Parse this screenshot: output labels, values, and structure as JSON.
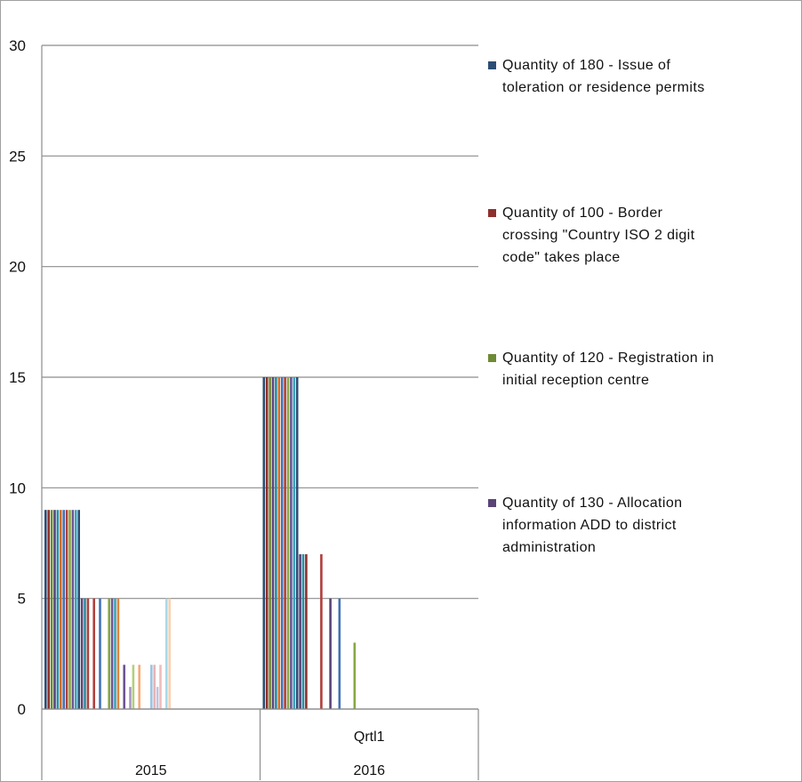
{
  "chart_data": {
    "type": "bar",
    "title": "",
    "xlabel": "",
    "ylabel": "",
    "ylim": [
      0,
      30
    ],
    "yticks": [
      0,
      5,
      10,
      15,
      20,
      25,
      30
    ],
    "grid": true,
    "legend_position": "right",
    "x_axis_levels": {
      "quarter_labels": [
        "",
        "Qrtl1"
      ],
      "year_labels": [
        "2015",
        "2016"
      ]
    },
    "groups": [
      {
        "year": "2015",
        "quarter": "",
        "bars": [
          {
            "value": 9,
            "color": "#2c4d75"
          },
          {
            "value": 9,
            "color": "#8e2f2c"
          },
          {
            "value": 9,
            "color": "#6f8a34"
          },
          {
            "value": 9,
            "color": "#5a4478"
          },
          {
            "value": 9,
            "color": "#2a8ba3"
          },
          {
            "value": 9,
            "color": "#d46e25"
          },
          {
            "value": 9,
            "color": "#4372b8"
          },
          {
            "value": 9,
            "color": "#b03f3c"
          },
          {
            "value": 9,
            "color": "#86a844"
          },
          {
            "value": 9,
            "color": "#6c5494"
          },
          {
            "value": 9,
            "color": "#3aa3bb"
          },
          {
            "value": 9,
            "color": "#2c4d75"
          },
          {
            "value": 5,
            "color": "#5a4478"
          },
          {
            "value": 5,
            "color": "#2a8ba3"
          },
          {
            "value": 5,
            "color": "#b03f3c"
          },
          {
            "value": 0,
            "color": "#86a844"
          },
          {
            "value": 5,
            "color": "#b03f3c"
          },
          {
            "value": 0,
            "color": "#86a844"
          },
          {
            "value": 5,
            "color": "#4372b8"
          },
          {
            "value": 0,
            "color": "#86a844"
          },
          {
            "value": 0,
            "color": "#86a844"
          },
          {
            "value": 5,
            "color": "#86a844"
          },
          {
            "value": 5,
            "color": "#6c5494"
          },
          {
            "value": 5,
            "color": "#3aa3bb"
          },
          {
            "value": 5,
            "color": "#e48236"
          },
          {
            "value": 0,
            "color": "#86a844"
          },
          {
            "value": 2,
            "color": "#6c5494"
          },
          {
            "value": 0,
            "color": "#86a844"
          },
          {
            "value": 1,
            "color": "#a898c4"
          },
          {
            "value": 2,
            "color": "#b4cf7a"
          },
          {
            "value": 0,
            "color": "#86a844"
          },
          {
            "value": 2,
            "color": "#f4aa78"
          },
          {
            "value": 0,
            "color": "#86a844"
          },
          {
            "value": 0,
            "color": "#86a844"
          },
          {
            "value": 0,
            "color": "#86a844"
          },
          {
            "value": 2,
            "color": "#9cc4e4"
          },
          {
            "value": 2,
            "color": "#e6b4b4"
          },
          {
            "value": 1,
            "color": "#c8c0dc"
          },
          {
            "value": 2,
            "color": "#f0bcbc"
          },
          {
            "value": 0,
            "color": "#86a844"
          },
          {
            "value": 5,
            "color": "#a8d8e8"
          },
          {
            "value": 5,
            "color": "#fad0b0"
          }
        ]
      },
      {
        "year": "2016",
        "quarter": "Qrtl1",
        "bars": [
          {
            "value": 15,
            "color": "#2c4d75"
          },
          {
            "value": 15,
            "color": "#8e2f2c"
          },
          {
            "value": 15,
            "color": "#6f8a34"
          },
          {
            "value": 15,
            "color": "#5a4478"
          },
          {
            "value": 15,
            "color": "#2a8ba3"
          },
          {
            "value": 15,
            "color": "#d46e25"
          },
          {
            "value": 15,
            "color": "#4372b8"
          },
          {
            "value": 15,
            "color": "#b03f3c"
          },
          {
            "value": 15,
            "color": "#86a844"
          },
          {
            "value": 15,
            "color": "#6c5494"
          },
          {
            "value": 15,
            "color": "#3aa3bb"
          },
          {
            "value": 15,
            "color": "#2c4d75"
          },
          {
            "value": 7,
            "color": "#5a4478"
          },
          {
            "value": 7,
            "color": "#2a8ba3"
          },
          {
            "value": 7,
            "color": "#8e2f2c"
          },
          {
            "value": 0,
            "color": "#86a844"
          },
          {
            "value": 0,
            "color": "#86a844"
          },
          {
            "value": 0,
            "color": "#86a844"
          },
          {
            "value": 0,
            "color": "#86a844"
          },
          {
            "value": 7,
            "color": "#b03f3c"
          },
          {
            "value": 0,
            "color": "#86a844"
          },
          {
            "value": 0,
            "color": "#86a844"
          },
          {
            "value": 5,
            "color": "#5a4478"
          },
          {
            "value": 0,
            "color": "#86a844"
          },
          {
            "value": 0,
            "color": "#86a844"
          },
          {
            "value": 5,
            "color": "#4372b8"
          },
          {
            "value": 0,
            "color": "#86a844"
          },
          {
            "value": 0,
            "color": "#86a844"
          },
          {
            "value": 0,
            "color": "#86a844"
          },
          {
            "value": 0,
            "color": "#86a844"
          },
          {
            "value": 3,
            "color": "#86a844"
          }
        ]
      }
    ],
    "legend": [
      {
        "color": "#2c4d75",
        "lines": [
          "Quantity of 180 - Issue of",
          "toleration or residence permits"
        ]
      },
      {
        "color": "#8e2f2c",
        "lines": [
          "Quantity of 100 - Border",
          "crossing \"Country ISO 2 digit",
          "code\" takes place"
        ]
      },
      {
        "color": "#6f8a34",
        "lines": [
          "Quantity of 120 - Registration in",
          "initial reception centre"
        ]
      },
      {
        "color": "#5a4478",
        "lines": [
          "Quantity of 130 - Allocation",
          "information ADD to district",
          "administration"
        ]
      }
    ]
  }
}
